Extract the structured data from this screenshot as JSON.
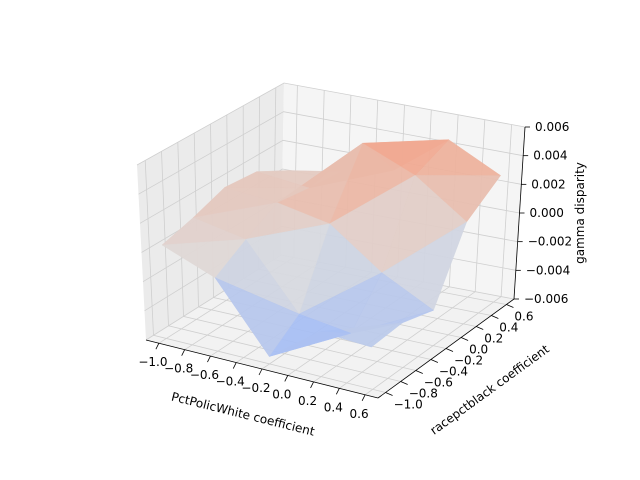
{
  "chart_data": {
    "type": "surface3d",
    "colormap": "coolwarm",
    "title": "",
    "xlabel": "PctPolicWhite coefficient",
    "ylabel": "racepctblack coefficient",
    "zlabel": "gamma disparity",
    "xlim": [
      -1.1,
      0.7
    ],
    "ylim": [
      -1.1,
      0.7
    ],
    "zlim": [
      -0.006,
      0.006
    ],
    "xticks": [
      "−1.0",
      "−0.8",
      "−0.6",
      "−0.4",
      "−0.2",
      "0.0",
      "0.2",
      "0.4",
      "0.6"
    ],
    "yticks": [
      "−1.0",
      "−0.8",
      "−0.6",
      "−0.4",
      "−0.2",
      "0.0",
      "0.2",
      "0.4",
      "0.6"
    ],
    "zticks": [
      "−0.006",
      "−0.004",
      "−0.002",
      "0.000",
      "0.002",
      "0.004",
      "0.006"
    ],
    "x": [
      -1.0,
      -0.6,
      -0.2,
      0.2,
      0.6
    ],
    "y": [
      -1.0,
      -0.6,
      -0.2,
      0.2,
      0.6
    ],
    "z": [
      [
        0.0004,
        -0.001,
        -0.0055,
        -0.003,
        -0.0032
      ],
      [
        0.001,
        0.0003,
        -0.004,
        -0.0045,
        -0.003
      ],
      [
        0.0018,
        0.0015,
        0.0008,
        -0.0018,
        -0.0036
      ],
      [
        0.0016,
        0.0012,
        0.005,
        0.0035,
        0.001
      ],
      [
        0.0004,
        0.001,
        0.0018,
        0.0046,
        0.0028
      ]
    ],
    "grid": true
  }
}
